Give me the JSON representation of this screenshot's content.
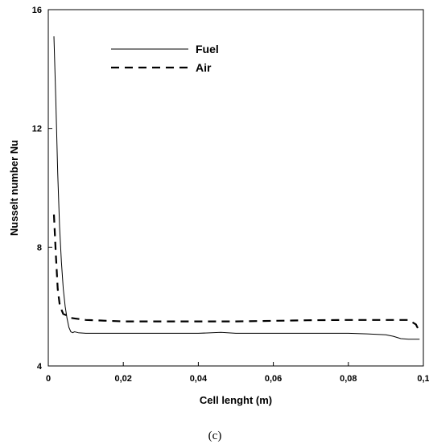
{
  "chart_data": {
    "type": "line",
    "xlabel": "Cell lenght (m)",
    "ylabel": "Nusselt number Nu",
    "xlim": [
      0,
      0.1
    ],
    "ylim": [
      4,
      16
    ],
    "xticks": [
      "0",
      "0,02",
      "0,04",
      "0,06",
      "0,08",
      "0,1"
    ],
    "yticks": [
      "4",
      "8",
      "12",
      "16"
    ],
    "grid": false,
    "legend_position": "top-left",
    "series": [
      {
        "name": "Fuel",
        "style": "solid",
        "color": "#000000",
        "x": [
          0.0015,
          0.002,
          0.0025,
          0.003,
          0.0035,
          0.004,
          0.0045,
          0.005,
          0.0055,
          0.006,
          0.0065,
          0.007,
          0.008,
          0.01,
          0.02,
          0.03,
          0.04,
          0.046,
          0.05,
          0.06,
          0.07,
          0.08,
          0.085,
          0.09,
          0.092,
          0.094,
          0.096,
          0.098,
          0.099
        ],
        "y": [
          15.1,
          13.0,
          10.5,
          8.7,
          7.5,
          6.6,
          6.0,
          5.6,
          5.3,
          5.15,
          5.12,
          5.15,
          5.12,
          5.1,
          5.1,
          5.1,
          5.1,
          5.13,
          5.1,
          5.1,
          5.1,
          5.1,
          5.08,
          5.05,
          5.0,
          4.92,
          4.9,
          4.9,
          4.9
        ]
      },
      {
        "name": "Air",
        "style": "dashed",
        "color": "#000000",
        "x": [
          0.0015,
          0.002,
          0.0025,
          0.003,
          0.0035,
          0.004,
          0.005,
          0.006,
          0.007,
          0.01,
          0.02,
          0.03,
          0.04,
          0.05,
          0.06,
          0.065,
          0.07,
          0.08,
          0.09,
          0.094,
          0.096,
          0.098,
          0.099
        ],
        "y": [
          9.1,
          7.8,
          6.6,
          6.1,
          5.9,
          5.75,
          5.7,
          5.62,
          5.6,
          5.55,
          5.5,
          5.5,
          5.5,
          5.5,
          5.52,
          5.53,
          5.54,
          5.55,
          5.55,
          5.55,
          5.55,
          5.4,
          5.15
        ]
      }
    ]
  },
  "caption": "(c)"
}
